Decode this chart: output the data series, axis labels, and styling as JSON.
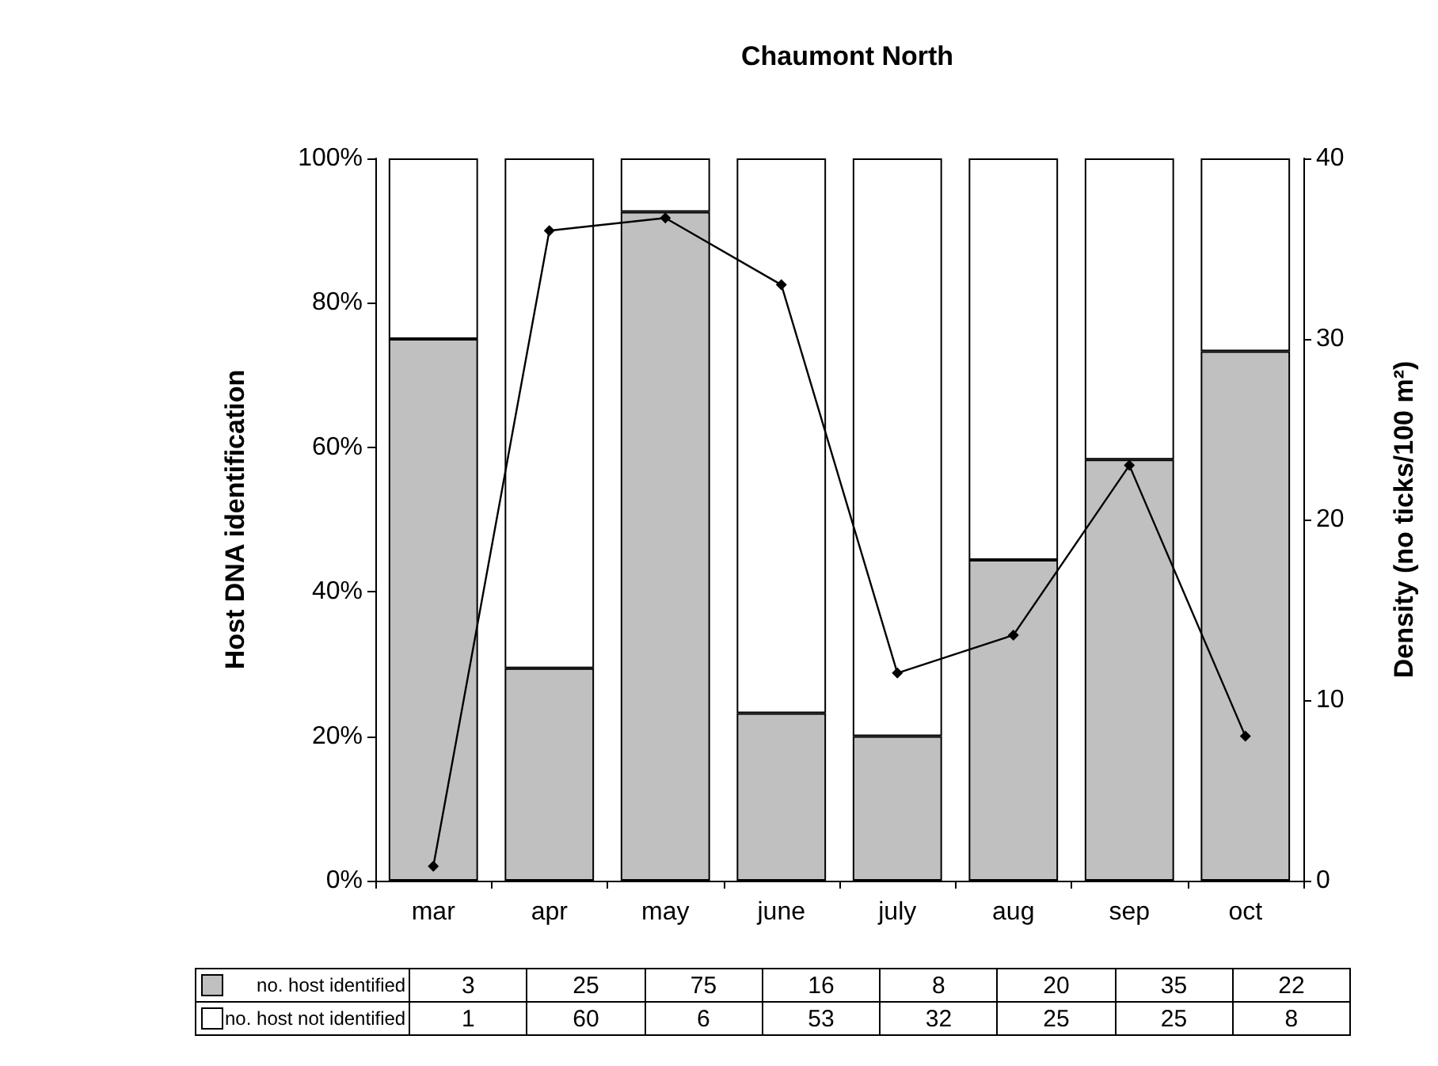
{
  "chart_data": {
    "type": "bar",
    "title": "Chaumont North",
    "ylabel": "Host DNA identification",
    "y2label": "Density (no ticks/100 m²)",
    "categories": [
      "mar",
      "apr",
      "may",
      "june",
      "july",
      "aug",
      "sep",
      "oct"
    ],
    "stacked": true,
    "series": [
      {
        "name": "no. host identified",
        "color": "#c0c0c0",
        "values": [
          75,
          29.4,
          92.6,
          23.2,
          20,
          44.4,
          58.3,
          73.3
        ]
      },
      {
        "name": "no. host not identified",
        "color": "#ffffff",
        "values": [
          25,
          70.6,
          7.4,
          76.8,
          80,
          55.6,
          41.7,
          26.7
        ]
      },
      {
        "type": "line",
        "axis": "y2",
        "color": "#000000",
        "marker": "diamond",
        "values": [
          0.8,
          36,
          36.7,
          33,
          11.5,
          13.6,
          23,
          8
        ]
      }
    ],
    "ylim": [
      0,
      100
    ],
    "yticks": [
      {
        "value": 0,
        "label": "0%"
      },
      {
        "value": 20,
        "label": "20%"
      },
      {
        "value": 40,
        "label": "40%"
      },
      {
        "value": 60,
        "label": "60%"
      },
      {
        "value": 80,
        "label": "80%"
      },
      {
        "value": 100,
        "label": "100%"
      }
    ],
    "y2lim": [
      0,
      40
    ],
    "y2ticks": [
      0,
      10,
      20,
      30,
      40
    ],
    "annotations": [
      "3",
      "25",
      "75",
      "16",
      "8",
      "20",
      "35",
      "22",
      "1",
      "60",
      "6",
      "53",
      "32",
      "25",
      "25",
      "8"
    ],
    "grid": false,
    "legend": "bottom"
  }
}
